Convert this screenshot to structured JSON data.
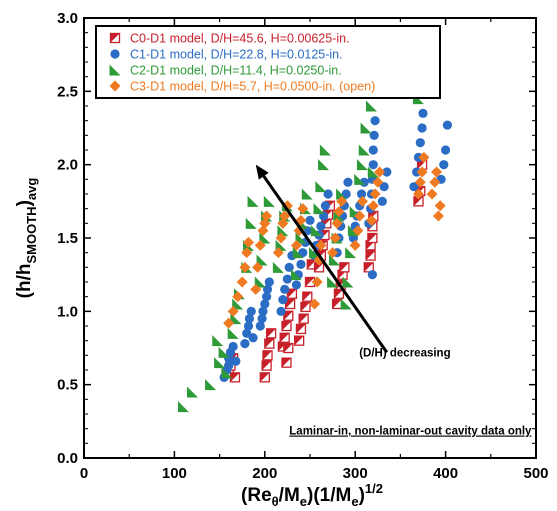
{
  "chart_data": {
    "type": "scatter",
    "title": "",
    "xlabel": {
      "base": "(Re",
      "sub1": "θ",
      "mid1": "/M",
      "sub2": "e",
      "mid2": ")(1/M",
      "sub3": "e",
      "mid3": ")",
      "sup": "1/2"
    },
    "ylabel": {
      "base": "(h/h",
      "sub": "SMOOTH",
      "mid": ")",
      "sub2": "avg"
    },
    "xlim": [
      0,
      500
    ],
    "ylim": [
      0,
      3.0
    ],
    "xticks": [
      "0",
      "100",
      "200",
      "300",
      "400",
      "500"
    ],
    "yticks": [
      "0.0",
      "0.5",
      "1.0",
      "1.5",
      "2.0",
      "2.5",
      "3.0"
    ],
    "grid": false,
    "legend_position": "top-left",
    "series": [
      {
        "name": "C0-D1 model, D/H=45.6, H=0.00625-in.",
        "marker": "half-square",
        "color": "#c8202a",
        "points": [
          [
            160,
            0.58
          ],
          [
            162,
            0.63
          ],
          [
            165,
            0.68
          ],
          [
            167,
            0.55
          ],
          [
            200,
            0.55
          ],
          [
            202,
            0.63
          ],
          [
            203,
            0.7
          ],
          [
            205,
            0.78
          ],
          [
            207,
            0.85
          ],
          [
            220,
            0.76
          ],
          [
            222,
            0.82
          ],
          [
            224,
            0.9
          ],
          [
            226,
            0.97
          ],
          [
            228,
            1.05
          ],
          [
            230,
            1.12
          ],
          [
            224,
            0.65
          ],
          [
            226,
            0.75
          ],
          [
            238,
            0.8
          ],
          [
            240,
            0.88
          ],
          [
            243,
            0.95
          ],
          [
            245,
            1.03
          ],
          [
            247,
            1.1
          ],
          [
            250,
            1.2
          ],
          [
            252,
            1.32
          ],
          [
            260,
            1.3
          ],
          [
            262,
            1.38
          ],
          [
            264,
            1.45
          ],
          [
            266,
            1.52
          ],
          [
            268,
            1.6
          ],
          [
            270,
            1.66
          ],
          [
            272,
            1.72
          ],
          [
            280,
            1.05
          ],
          [
            282,
            1.12
          ],
          [
            284,
            1.18
          ],
          [
            286,
            1.25
          ],
          [
            288,
            1.3
          ],
          [
            315,
            1.3
          ],
          [
            317,
            1.38
          ],
          [
            317,
            1.45
          ],
          [
            319,
            1.5
          ],
          [
            319,
            1.58
          ],
          [
            320,
            1.65
          ],
          [
            370,
            1.75
          ],
          [
            372,
            1.82
          ],
          [
            374,
            2.0
          ]
        ]
      },
      {
        "name": "C1-D1 model, D/H=22.8, H=0.0125-in.",
        "marker": "circle",
        "color": "#2b6cc4",
        "points": [
          [
            155,
            0.55
          ],
          [
            158,
            0.6
          ],
          [
            160,
            0.63
          ],
          [
            160,
            0.68
          ],
          [
            162,
            0.72
          ],
          [
            165,
            0.76
          ],
          [
            168,
            0.66
          ],
          [
            178,
            0.78
          ],
          [
            180,
            0.85
          ],
          [
            182,
            0.9
          ],
          [
            183,
            0.95
          ],
          [
            185,
            1.0
          ],
          [
            187,
            0.82
          ],
          [
            195,
            0.9
          ],
          [
            197,
            0.95
          ],
          [
            198,
            1.0
          ],
          [
            200,
            1.05
          ],
          [
            202,
            1.1
          ],
          [
            203,
            1.15
          ],
          [
            205,
            1.2
          ],
          [
            218,
            1.0
          ],
          [
            220,
            1.08
          ],
          [
            222,
            1.15
          ],
          [
            225,
            1.22
          ],
          [
            227,
            1.3
          ],
          [
            230,
            1.38
          ],
          [
            235,
            1.18
          ],
          [
            237,
            1.25
          ],
          [
            240,
            1.32
          ],
          [
            242,
            1.4
          ],
          [
            245,
            1.47
          ],
          [
            247,
            1.55
          ],
          [
            250,
            1.62
          ],
          [
            255,
            1.38
          ],
          [
            257,
            1.45
          ],
          [
            260,
            1.52
          ],
          [
            262,
            1.58
          ],
          [
            265,
            1.65
          ],
          [
            267,
            1.72
          ],
          [
            270,
            1.8
          ],
          [
            280,
            1.4
          ],
          [
            282,
            1.5
          ],
          [
            284,
            1.58
          ],
          [
            286,
            1.65
          ],
          [
            288,
            1.72
          ],
          [
            290,
            1.8
          ],
          [
            292,
            1.88
          ],
          [
            298,
            1.5
          ],
          [
            300,
            1.58
          ],
          [
            302,
            1.65
          ],
          [
            305,
            1.72
          ],
          [
            307,
            1.8
          ],
          [
            310,
            1.88
          ],
          [
            315,
            1.6
          ],
          [
            317,
            1.7
          ],
          [
            318,
            1.8
          ],
          [
            319,
            1.9
          ],
          [
            320,
            2.0
          ],
          [
            320,
            2.1
          ],
          [
            321,
            2.2
          ],
          [
            322,
            2.3
          ],
          [
            319,
            1.25
          ],
          [
            330,
            1.75
          ],
          [
            332,
            1.85
          ],
          [
            335,
            1.95
          ],
          [
            365,
            1.85
          ],
          [
            368,
            1.95
          ],
          [
            370,
            2.05
          ],
          [
            372,
            2.15
          ],
          [
            374,
            2.25
          ],
          [
            375,
            2.35
          ],
          [
            395,
            1.9
          ],
          [
            398,
            2.0
          ],
          [
            400,
            2.1
          ],
          [
            402,
            2.27
          ]
        ]
      },
      {
        "name": "C2-D1 model, D/H=11.4, H=0.0250-in.",
        "marker": "triangle",
        "color": "#2e9a38",
        "points": [
          [
            110,
            0.35
          ],
          [
            120,
            0.45
          ],
          [
            140,
            0.5
          ],
          [
            148,
            0.8
          ],
          [
            150,
            0.65
          ],
          [
            155,
            0.72
          ],
          [
            158,
            0.58
          ],
          [
            165,
            0.85
          ],
          [
            168,
            0.95
          ],
          [
            170,
            1.05
          ],
          [
            172,
            1.12
          ],
          [
            180,
            1.3
          ],
          [
            182,
            1.45
          ],
          [
            185,
            1.6
          ],
          [
            187,
            1.75
          ],
          [
            195,
            1.2
          ],
          [
            197,
            1.35
          ],
          [
            200,
            1.5
          ],
          [
            202,
            1.65
          ],
          [
            205,
            1.75
          ],
          [
            215,
            1.3
          ],
          [
            218,
            1.45
          ],
          [
            220,
            1.55
          ],
          [
            222,
            1.65
          ],
          [
            225,
            1.72
          ],
          [
            235,
            1.25
          ],
          [
            237,
            1.4
          ],
          [
            240,
            1.5
          ],
          [
            242,
            1.6
          ],
          [
            245,
            1.7
          ],
          [
            247,
            1.8
          ],
          [
            255,
            1.4
          ],
          [
            257,
            1.55
          ],
          [
            260,
            1.7
          ],
          [
            262,
            1.85
          ],
          [
            265,
            2.0
          ],
          [
            267,
            2.1
          ],
          [
            275,
            1.2
          ],
          [
            277,
            1.35
          ],
          [
            280,
            1.5
          ],
          [
            282,
            1.65
          ],
          [
            285,
            1.8
          ],
          [
            290,
            1.05
          ],
          [
            292,
            1.2
          ],
          [
            295,
            1.4
          ],
          [
            298,
            1.55
          ],
          [
            300,
            1.68
          ],
          [
            305,
            1.9
          ],
          [
            308,
            2.0
          ],
          [
            310,
            2.1
          ],
          [
            312,
            2.25
          ],
          [
            318,
            2.4
          ],
          [
            320,
            2.55
          ],
          [
            322,
            2.7
          ],
          [
            320,
            1.95
          ],
          [
            370,
            2.45
          ]
        ]
      },
      {
        "name": "C3-D1 model, D/H=5.7, H=0.0500-in. (open)",
        "marker": "diamond",
        "color": "#f07a22",
        "points": [
          [
            160,
            0.92
          ],
          [
            165,
            1.0
          ],
          [
            170,
            1.1
          ],
          [
            175,
            1.2
          ],
          [
            178,
            1.3
          ],
          [
            180,
            1.4
          ],
          [
            182,
            1.47
          ],
          [
            190,
            1.15
          ],
          [
            192,
            1.3
          ],
          [
            195,
            1.45
          ],
          [
            198,
            1.55
          ],
          [
            200,
            1.6
          ],
          [
            202,
            1.65
          ],
          [
            215,
            1.4
          ],
          [
            218,
            1.5
          ],
          [
            220,
            1.6
          ],
          [
            222,
            1.65
          ],
          [
            225,
            1.72
          ],
          [
            235,
            1.45
          ],
          [
            238,
            1.55
          ],
          [
            240,
            1.62
          ],
          [
            242,
            1.7
          ],
          [
            255,
            1.05
          ],
          [
            258,
            1.2
          ],
          [
            260,
            1.35
          ],
          [
            262,
            1.45
          ],
          [
            275,
            1.4
          ],
          [
            278,
            1.5
          ],
          [
            280,
            1.6
          ],
          [
            282,
            1.68
          ],
          [
            285,
            1.75
          ],
          [
            300,
            1.45
          ],
          [
            303,
            1.55
          ],
          [
            305,
            1.65
          ],
          [
            308,
            1.75
          ],
          [
            318,
            1.62
          ],
          [
            320,
            1.72
          ],
          [
            322,
            1.8
          ],
          [
            325,
            1.88
          ],
          [
            327,
            1.95
          ],
          [
            370,
            1.8
          ],
          [
            372,
            1.88
          ],
          [
            374,
            1.95
          ],
          [
            376,
            2.05
          ],
          [
            385,
            1.8
          ],
          [
            388,
            1.88
          ],
          [
            390,
            1.95
          ],
          [
            392,
            1.65
          ],
          [
            394,
            1.72
          ]
        ]
      }
    ],
    "annotations": [
      {
        "text": "(D/H) decreasing",
        "x": 355,
        "y": 0.72
      },
      {
        "text": "Laminar-in, non-laminar-out cavity data only",
        "x": 495,
        "y": 0.16
      },
      {
        "arrow_from": [
          335,
          0.72
        ],
        "arrow_to": [
          190,
          2.0
        ]
      }
    ]
  }
}
